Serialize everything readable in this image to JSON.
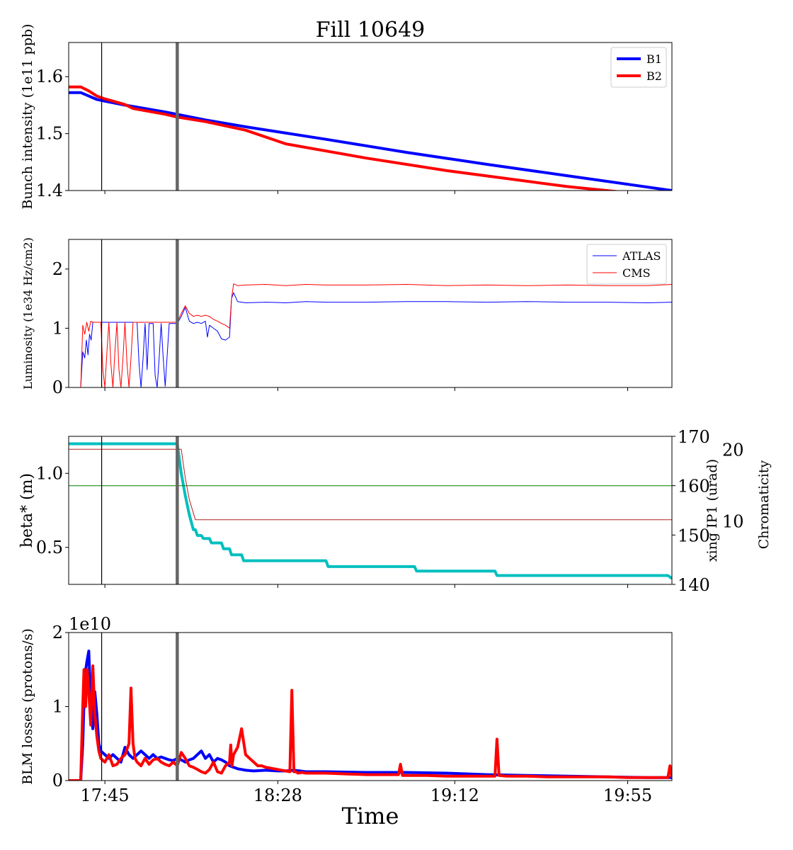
{
  "figure": {
    "title": "Fill 10649",
    "xlabel": "Time",
    "x_ticks": [
      "17:45",
      "18:28",
      "19:12",
      "19:55"
    ],
    "x_tick_minutes": [
      1065,
      1108,
      1152,
      1195
    ],
    "x_range": [
      1056,
      1206
    ],
    "markers": [
      {
        "kind": "thin",
        "color": "#000000",
        "t": 1064.2
      },
      {
        "kind": "thick",
        "color": "#666666",
        "t": 1083
      }
    ]
  },
  "chart_data": [
    {
      "type": "line",
      "ylabel": "Bunch intensity (1e11 ppb)",
      "ylim": [
        1.4,
        1.66
      ],
      "yticks": [
        "1.4",
        "1.5",
        "1.6"
      ],
      "ytick_values": [
        1.4,
        1.5,
        1.6
      ],
      "legend": {
        "placement": "top-right"
      },
      "series": [
        {
          "name": "B1",
          "color": "#0000ff",
          "width": 4,
          "x": [
            1056,
            1059,
            1061,
            1063,
            1065,
            1070,
            1080,
            1090,
            1100,
            1120,
            1140,
            1160,
            1180,
            1206
          ],
          "y": [
            1.572,
            1.572,
            1.566,
            1.56,
            1.557,
            1.55,
            1.538,
            1.524,
            1.512,
            1.49,
            1.467,
            1.446,
            1.426,
            1.4
          ]
        },
        {
          "name": "B2",
          "color": "#ff0000",
          "width": 4,
          "x": [
            1056,
            1059,
            1061,
            1063,
            1065,
            1070,
            1072,
            1080,
            1083,
            1090,
            1100,
            1110,
            1130,
            1150,
            1166,
            1180,
            1194
          ],
          "y": [
            1.582,
            1.582,
            1.575,
            1.566,
            1.561,
            1.551,
            1.544,
            1.534,
            1.529,
            1.521,
            1.506,
            1.482,
            1.457,
            1.435,
            1.42,
            1.407,
            1.397
          ]
        }
      ]
    },
    {
      "type": "line",
      "ylabel": "Luminosity (1e34 Hz/cm2)",
      "ylim": [
        0,
        2.5
      ],
      "yticks": [
        "0",
        "1",
        "2"
      ],
      "ytick_values": [
        0,
        1,
        2
      ],
      "legend": {
        "placement": "top-right"
      },
      "series": [
        {
          "name": "ATLAS",
          "color": "#0000ff",
          "width": 1,
          "x": [
            1056,
            1059,
            1059.5,
            1060,
            1060.4,
            1060.8,
            1061.2,
            1061.6,
            1062,
            1063,
            1064,
            1065,
            1066,
            1067,
            1068,
            1069,
            1070,
            1071,
            1072,
            1073,
            1073.5,
            1074,
            1074.5,
            1075,
            1075.5,
            1076,
            1077,
            1077.5,
            1078,
            1078.5,
            1079,
            1079.5,
            1080,
            1081,
            1082,
            1083,
            1084,
            1085,
            1086,
            1087,
            1088,
            1089,
            1090,
            1090.5,
            1091,
            1092,
            1093,
            1094,
            1095,
            1096,
            1096.5,
            1097,
            1098,
            1100,
            1105,
            1110,
            1115,
            1120,
            1130,
            1140,
            1150,
            1160,
            1170,
            1180,
            1190,
            1200,
            1206
          ],
          "y": [
            0,
            0,
            0.6,
            0.5,
            0.8,
            0.55,
            0.9,
            0.8,
            1.1,
            1.1,
            1.1,
            1.1,
            1.1,
            1.1,
            1.1,
            1.1,
            1.1,
            1.1,
            1.1,
            1.1,
            0.4,
            0,
            0.5,
            1.08,
            0.3,
            1.08,
            1.08,
            0.2,
            0,
            0.5,
            1.08,
            0.5,
            0.02,
            1.08,
            1.08,
            1.08,
            1.2,
            1.35,
            1.12,
            1.08,
            1.1,
            1.08,
            1.12,
            0.85,
            1.05,
            1.0,
            0.95,
            0.82,
            0.8,
            0.85,
            1.5,
            1.6,
            1.45,
            1.43,
            1.44,
            1.43,
            1.45,
            1.44,
            1.44,
            1.45,
            1.45,
            1.44,
            1.45,
            1.44,
            1.44,
            1.43,
            1.44
          ]
        },
        {
          "name": "CMS",
          "color": "#ff0000",
          "width": 1,
          "x": [
            1056,
            1059,
            1059.5,
            1060,
            1060.5,
            1061,
            1061.5,
            1062,
            1063,
            1063.5,
            1064,
            1064.5,
            1065,
            1065.5,
            1066,
            1066.5,
            1067,
            1067.5,
            1068,
            1068.5,
            1069,
            1069.5,
            1070,
            1070.5,
            1071,
            1071.5,
            1072,
            1072.5,
            1073,
            1074,
            1075,
            1076,
            1077,
            1078,
            1079,
            1080,
            1081,
            1082,
            1083,
            1084,
            1085,
            1086,
            1087,
            1088,
            1089,
            1090,
            1091,
            1092,
            1093,
            1094,
            1095,
            1096,
            1096.5,
            1097,
            1098,
            1100,
            1105,
            1110,
            1115,
            1120,
            1130,
            1140,
            1150,
            1160,
            1170,
            1180,
            1190,
            1200,
            1206
          ],
          "y": [
            0,
            0,
            1.05,
            0.9,
            1.1,
            0.95,
            1.12,
            1.1,
            1.1,
            1.1,
            1.1,
            0.3,
            0,
            0.6,
            1.1,
            0.4,
            0,
            0.6,
            1.1,
            0.3,
            0,
            0.5,
            1.1,
            0.4,
            0,
            0.5,
            1.1,
            1.1,
            1.1,
            1.1,
            1.1,
            1.1,
            1.1,
            1.1,
            1.1,
            1.1,
            1.1,
            1.1,
            1.1,
            1.25,
            1.38,
            1.25,
            1.2,
            1.22,
            1.2,
            1.22,
            1.2,
            1.15,
            1.12,
            1.08,
            1.05,
            1.0,
            1.5,
            1.75,
            1.72,
            1.73,
            1.74,
            1.72,
            1.74,
            1.73,
            1.73,
            1.74,
            1.72,
            1.73,
            1.72,
            1.73,
            1.72,
            1.72,
            1.74
          ]
        }
      ]
    },
    {
      "type": "line",
      "ylabel": "beta* (m)",
      "ylabel_right": "xing IP1 (urad)",
      "ylabel_right2": "Chromaticity",
      "ylim": [
        0.25,
        1.25
      ],
      "yticks": [
        "0.5",
        "1.0"
      ],
      "ytick_values": [
        0.5,
        1.0
      ],
      "y2lim": [
        140,
        170
      ],
      "y2ticks": [
        "140",
        "150",
        "160",
        "170"
      ],
      "y2tick_values": [
        140,
        150,
        160,
        170
      ],
      "y3lim": [
        1.2,
        21.8
      ],
      "y3ticks": [
        "10",
        "20"
      ],
      "y3tick_values": [
        10,
        20
      ],
      "colors": {
        "beta": "#00bfbf",
        "xing": "#008000",
        "chroma": "#b22222"
      },
      "series": [
        {
          "name": "beta*",
          "axis": "left",
          "color": "#00bfbf",
          "width": 4,
          "x": [
            1056,
            1083,
            1084,
            1085,
            1086,
            1087,
            1087.5,
            1088,
            1089,
            1089.5,
            1090,
            1091,
            1091.5,
            1092,
            1094,
            1094.5,
            1095,
            1096,
            1096.5,
            1097,
            1099,
            1099.5,
            1100,
            1102,
            1102.5,
            1120,
            1120.5,
            1142,
            1142.5,
            1162,
            1162.5,
            1184,
            1184.5,
            1205,
            1206
          ],
          "y": [
            1.2,
            1.2,
            1.0,
            0.85,
            0.72,
            0.62,
            0.62,
            0.58,
            0.58,
            0.56,
            0.56,
            0.56,
            0.53,
            0.53,
            0.53,
            0.49,
            0.49,
            0.49,
            0.45,
            0.45,
            0.45,
            0.41,
            0.41,
            0.41,
            0.41,
            0.41,
            0.37,
            0.37,
            0.34,
            0.34,
            0.31,
            0.31,
            0.31,
            0.31,
            0.29
          ]
        },
        {
          "name": "xing IP1",
          "axis": "right",
          "color": "#008000",
          "width": 1,
          "x": [
            1056,
            1206
          ],
          "y": [
            160,
            160
          ]
        },
        {
          "name": "Chromaticity",
          "axis": "right2",
          "color": "#b22222",
          "width": 1,
          "x": [
            1056,
            1083,
            1083.1,
            1083.2,
            1084,
            1085,
            1086,
            1087.5,
            1206
          ],
          "y": [
            20,
            20,
            10.2,
            20,
            20,
            16,
            13,
            10.2,
            10.2
          ]
        }
      ]
    },
    {
      "type": "line",
      "ylabel": "BLM losses (protons/s)",
      "offset_label": "1e10",
      "ylim": [
        0,
        2
      ],
      "yticks": [
        "0",
        "1",
        "2"
      ],
      "ytick_values": [
        0,
        1,
        2
      ],
      "series": [
        {
          "name": "B1",
          "color": "#0000ff",
          "width": 4,
          "x": [
            1056,
            1059,
            1059.5,
            1060,
            1060.5,
            1061,
            1061.5,
            1062,
            1062.5,
            1063,
            1063.5,
            1064,
            1065,
            1066,
            1067,
            1068,
            1069,
            1070,
            1071,
            1072,
            1073,
            1074,
            1075,
            1076,
            1077,
            1078,
            1079,
            1080,
            1081,
            1082,
            1083,
            1084,
            1085,
            1086,
            1087,
            1088,
            1089,
            1090,
            1091,
            1092,
            1093,
            1094,
            1095,
            1096,
            1097,
            1098,
            1099,
            1100,
            1102,
            1105,
            1108,
            1110,
            1112,
            1115,
            1120,
            1130,
            1140,
            1150,
            1160,
            1170,
            1180,
            1190,
            1200,
            1206
          ],
          "y": [
            0,
            0,
            0.5,
            1.4,
            1.6,
            1.75,
            1.0,
            0.7,
            1.2,
            0.9,
            0.5,
            0.4,
            0.35,
            0.3,
            0.35,
            0.3,
            0.25,
            0.45,
            0.35,
            0.3,
            0.35,
            0.4,
            0.35,
            0.3,
            0.35,
            0.3,
            0.32,
            0.3,
            0.28,
            0.27,
            0.3,
            0.28,
            0.25,
            0.28,
            0.3,
            0.35,
            0.4,
            0.3,
            0.35,
            0.25,
            0.3,
            0.28,
            0.25,
            0.2,
            0.18,
            0.16,
            0.15,
            0.14,
            0.13,
            0.14,
            0.13,
            0.13,
            0.14,
            0.12,
            0.12,
            0.11,
            0.11,
            0.1,
            0.08,
            0.07,
            0.06,
            0.05,
            0.04,
            0.04
          ]
        },
        {
          "name": "B2",
          "color": "#ff0000",
          "width": 4,
          "x": [
            1056,
            1059,
            1059.5,
            1059.8,
            1060.2,
            1060.6,
            1061,
            1061.5,
            1062,
            1062.5,
            1063,
            1063.5,
            1064,
            1065,
            1066,
            1067,
            1068,
            1069,
            1070,
            1071,
            1071.5,
            1072,
            1072.5,
            1073,
            1074,
            1075,
            1076,
            1077,
            1078,
            1079,
            1080,
            1081,
            1082,
            1083,
            1084,
            1085,
            1086,
            1087,
            1088,
            1089,
            1090,
            1091,
            1092,
            1093,
            1094,
            1095,
            1096,
            1096.3,
            1096.6,
            1097,
            1098,
            1099,
            1100,
            1101,
            1102,
            1103,
            1104,
            1105,
            1106,
            1107,
            1108,
            1109,
            1110,
            1111,
            1111.5,
            1112,
            1112.5,
            1113,
            1114,
            1115,
            1116,
            1120,
            1125,
            1130,
            1135,
            1138,
            1138.5,
            1139,
            1140,
            1145,
            1150,
            1155,
            1160,
            1162,
            1162.5,
            1163,
            1165,
            1170,
            1175,
            1180,
            1185,
            1190,
            1195,
            1200,
            1205,
            1205.5,
            1206
          ],
          "y": [
            0,
            0,
            1.0,
            1.5,
            1.0,
            1.5,
            1.2,
            0.75,
            1.55,
            0.9,
            0.6,
            0.4,
            0.3,
            0.25,
            0.35,
            0.2,
            0.22,
            0.3,
            0.35,
            0.5,
            1.25,
            0.5,
            0.3,
            0.25,
            0.2,
            0.3,
            0.22,
            0.28,
            0.3,
            0.25,
            0.22,
            0.2,
            0.25,
            0.2,
            0.38,
            0.3,
            0.2,
            0.18,
            0.15,
            0.12,
            0.1,
            0.15,
            0.25,
            0.12,
            0.1,
            0.2,
            0.25,
            0.48,
            0.2,
            0.35,
            0.45,
            0.7,
            0.35,
            0.3,
            0.25,
            0.2,
            0.2,
            0.18,
            0.17,
            0.16,
            0.15,
            0.14,
            0.13,
            0.12,
            1.22,
            0.12,
            0.12,
            0.1,
            0.11,
            0.1,
            0.1,
            0.1,
            0.09,
            0.08,
            0.08,
            0.08,
            0.22,
            0.07,
            0.07,
            0.07,
            0.06,
            0.06,
            0.06,
            0.06,
            0.56,
            0.07,
            0.06,
            0.06,
            0.05,
            0.05,
            0.05,
            0.05,
            0.04,
            0.04,
            0.04,
            0.2,
            0.04
          ]
        }
      ]
    }
  ]
}
